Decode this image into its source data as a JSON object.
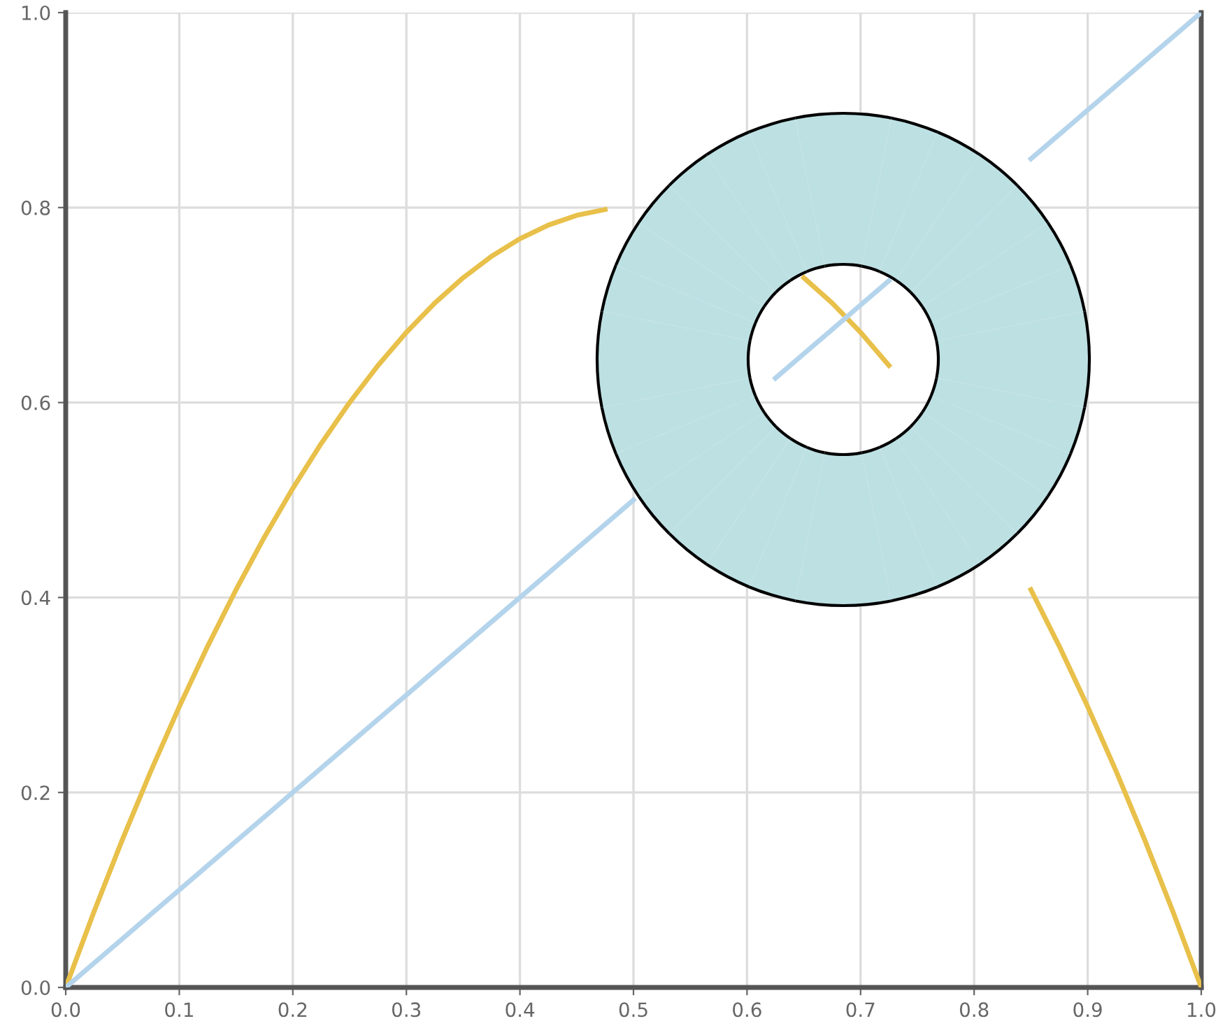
{
  "chart_data": {
    "type": "line",
    "x": [
      0,
      0.025,
      0.05,
      0.075,
      0.1,
      0.125,
      0.15,
      0.175,
      0.2,
      0.225,
      0.25,
      0.275,
      0.3,
      0.325,
      0.35,
      0.375,
      0.4,
      0.425,
      0.45,
      0.475,
      0.5,
      0.525,
      0.55,
      0.575,
      0.6,
      0.625,
      0.65,
      0.675,
      0.7,
      0.725,
      0.75,
      0.775,
      0.8,
      0.825,
      0.85,
      0.875,
      0.9,
      0.925,
      0.95,
      0.975,
      1
    ],
    "series": [
      {
        "color": "#e8c04a",
        "values": [
          0,
          0.078,
          0.152,
          0.222,
          0.288,
          0.35,
          0.408,
          0.462,
          0.512,
          0.558,
          0.6,
          0.638,
          0.672,
          0.702,
          0.728,
          0.75,
          0.768,
          0.782,
          0.792,
          0.798,
          null,
          null,
          null,
          null,
          null,
          null,
          0.728,
          0.702,
          0.672,
          0.638,
          null,
          null,
          null,
          null,
          0.408,
          0.35,
          0.288,
          0.222,
          0.152,
          0.078,
          0
        ]
      },
      {
        "color": "#b4d4ec",
        "values": [
          0,
          0.025,
          0.05,
          0.075,
          0.1,
          0.125,
          0.15,
          0.175,
          0.2,
          0.225,
          0.25,
          0.275,
          0.3,
          0.325,
          0.35,
          0.375,
          0.4,
          0.425,
          0.45,
          0.475,
          0.5,
          null,
          null,
          null,
          null,
          0.625,
          0.65,
          0.675,
          0.7,
          0.725,
          null,
          null,
          null,
          null,
          0.85,
          0.875,
          0.9,
          0.925,
          0.95,
          0.975,
          1
        ]
      }
    ],
    "xlim": [
      0,
      1
    ],
    "ylim": [
      0,
      1
    ],
    "xticks": [
      {
        "value": 0,
        "label": "0.0"
      },
      {
        "value": 0.1,
        "label": "0.1"
      },
      {
        "value": 0.2,
        "label": "0.2"
      },
      {
        "value": 0.3,
        "label": "0.3"
      },
      {
        "value": 0.4,
        "label": "0.4"
      },
      {
        "value": 0.5,
        "label": "0.5"
      },
      {
        "value": 0.6,
        "label": "0.6"
      },
      {
        "value": 0.7,
        "label": "0.7"
      },
      {
        "value": 0.8,
        "label": "0.8"
      },
      {
        "value": 0.9,
        "label": "0.9"
      },
      {
        "value": 1,
        "label": "1.0"
      }
    ],
    "yticks": [
      {
        "value": 0,
        "label": "0.0"
      },
      {
        "value": 0.2,
        "label": "0.2"
      },
      {
        "value": 0.4,
        "label": "0.4"
      },
      {
        "value": 0.6,
        "label": "0.6"
      },
      {
        "value": 0.8,
        "label": "0.8"
      },
      {
        "value": 1,
        "label": "1.0"
      }
    ],
    "grid": true,
    "legend": false,
    "marker": "none",
    "line_style": "solid"
  }
}
